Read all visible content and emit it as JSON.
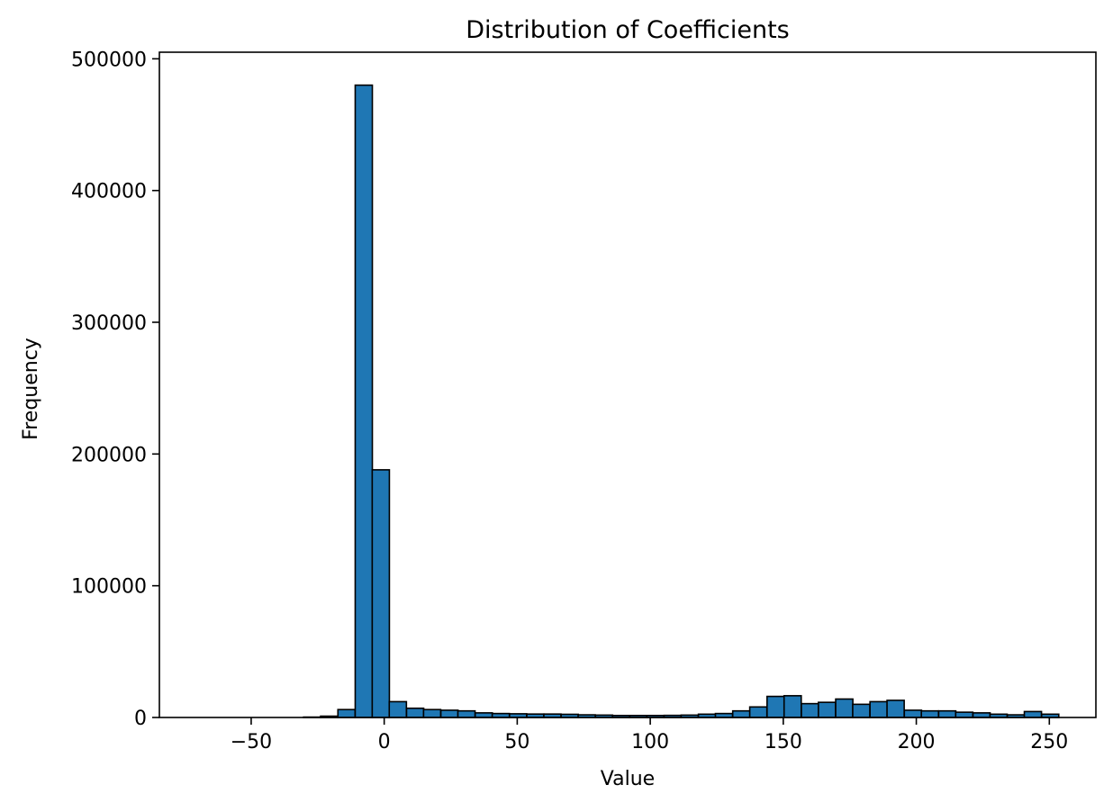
{
  "chart_data": {
    "type": "bar",
    "title": "Distribution of Coefficients",
    "xlabel": "Value",
    "ylabel": "Frequency",
    "xlim": [
      -84.5,
      267.5
    ],
    "ylim": [
      0,
      505000
    ],
    "grid": false,
    "bar_color": "#1f77b4",
    "edge_color": "#000000",
    "x_ticks": [
      -50,
      0,
      50,
      100,
      150,
      200,
      250
    ],
    "x_tick_labels": [
      "−50",
      "0",
      "50",
      "100",
      "150",
      "200",
      "250"
    ],
    "y_ticks": [
      0,
      100000,
      200000,
      300000,
      400000,
      500000
    ],
    "y_tick_labels": [
      "0",
      "100000",
      "200000",
      "300000",
      "400000",
      "500000"
    ],
    "bin_width": 6.45,
    "bins": [
      {
        "x0": -69.0,
        "count": 0
      },
      {
        "x0": -62.6,
        "count": 0
      },
      {
        "x0": -56.1,
        "count": 0
      },
      {
        "x0": -49.7,
        "count": 0
      },
      {
        "x0": -43.2,
        "count": 0
      },
      {
        "x0": -36.8,
        "count": 0
      },
      {
        "x0": -30.3,
        "count": 300
      },
      {
        "x0": -23.9,
        "count": 1000
      },
      {
        "x0": -17.4,
        "count": 6000
      },
      {
        "x0": -10.9,
        "count": 480000
      },
      {
        "x0": -4.5,
        "count": 188000
      },
      {
        "x0": 1.9,
        "count": 12000
      },
      {
        "x0": 8.4,
        "count": 7000
      },
      {
        "x0": 14.8,
        "count": 6000
      },
      {
        "x0": 21.3,
        "count": 5500
      },
      {
        "x0": 27.7,
        "count": 5000
      },
      {
        "x0": 34.2,
        "count": 3500
      },
      {
        "x0": 40.6,
        "count": 3000
      },
      {
        "x0": 47.1,
        "count": 2800
      },
      {
        "x0": 53.6,
        "count": 2600
      },
      {
        "x0": 60.0,
        "count": 2600
      },
      {
        "x0": 66.5,
        "count": 2400
      },
      {
        "x0": 72.9,
        "count": 2000
      },
      {
        "x0": 79.4,
        "count": 1800
      },
      {
        "x0": 85.8,
        "count": 1500
      },
      {
        "x0": 92.3,
        "count": 1500
      },
      {
        "x0": 98.7,
        "count": 1500
      },
      {
        "x0": 105.2,
        "count": 1600
      },
      {
        "x0": 111.6,
        "count": 1800
      },
      {
        "x0": 118.1,
        "count": 2500
      },
      {
        "x0": 124.5,
        "count": 3000
      },
      {
        "x0": 131.0,
        "count": 5000
      },
      {
        "x0": 137.4,
        "count": 8000
      },
      {
        "x0": 143.9,
        "count": 16000
      },
      {
        "x0": 150.3,
        "count": 16500
      },
      {
        "x0": 156.8,
        "count": 10500
      },
      {
        "x0": 163.2,
        "count": 11500
      },
      {
        "x0": 169.7,
        "count": 14000
      },
      {
        "x0": 176.1,
        "count": 10000
      },
      {
        "x0": 182.6,
        "count": 12000
      },
      {
        "x0": 189.0,
        "count": 13000
      },
      {
        "x0": 195.5,
        "count": 5500
      },
      {
        "x0": 201.9,
        "count": 5000
      },
      {
        "x0": 208.4,
        "count": 5000
      },
      {
        "x0": 214.8,
        "count": 4000
      },
      {
        "x0": 221.3,
        "count": 3500
      },
      {
        "x0": 227.7,
        "count": 2500
      },
      {
        "x0": 234.2,
        "count": 2000
      },
      {
        "x0": 240.6,
        "count": 4500
      },
      {
        "x0": 247.1,
        "count": 2500
      }
    ]
  }
}
